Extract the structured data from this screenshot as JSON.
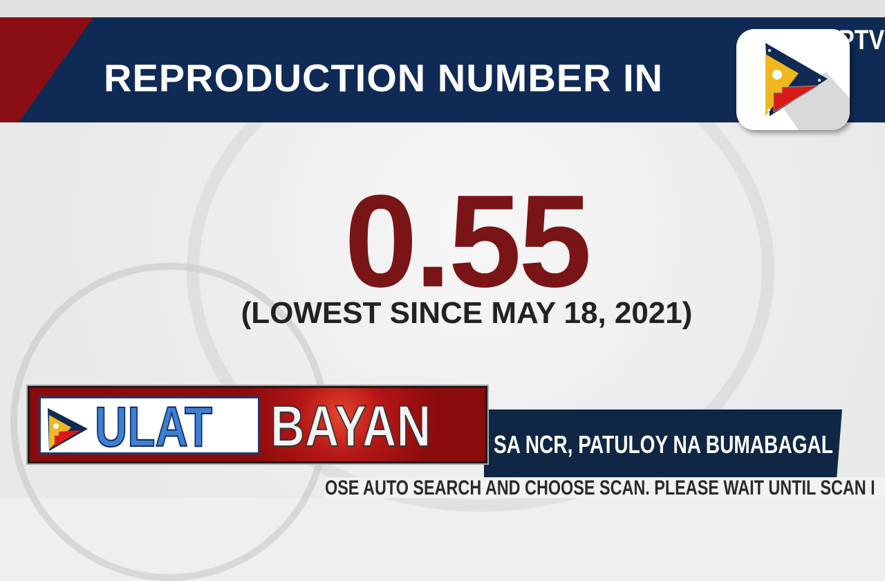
{
  "header": {
    "title": "REPRODUCTION NUMBER IN",
    "network": "PTV"
  },
  "main": {
    "value": "0.55",
    "note": "(LOWEST SINCE MAY 18, 2021)"
  },
  "lower_third": {
    "show_name_part1": "ULAT",
    "show_name_part2": "BAYAN",
    "headline": "SA NCR, PATULOY NA BUMABAGAL",
    "ticker": "OSE AUTO SEARCH AND CHOOSE SCAN. PLEASE WAIT UNTIL SCAN I"
  },
  "colors": {
    "navy": "#0f2a55",
    "accent_red": "#7a1517",
    "flag_yellow": "#f0b81e",
    "flag_red": "#d61a1a"
  }
}
